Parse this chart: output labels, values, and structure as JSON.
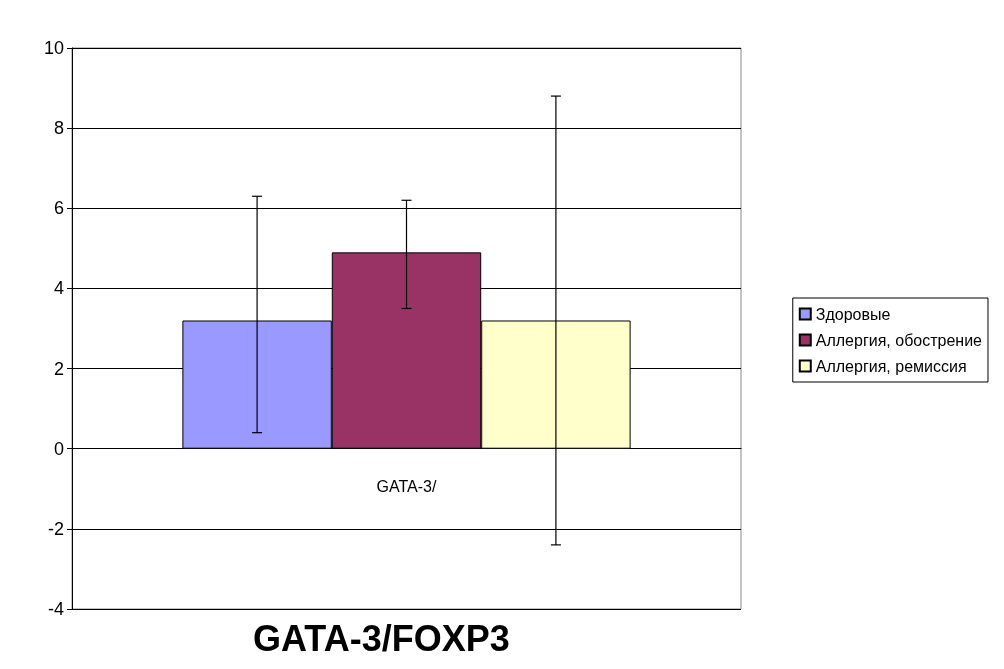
{
  "chart_data": {
    "type": "bar",
    "title": "GATA-3/FOXP3",
    "categories": [
      "GATA-3/"
    ],
    "series": [
      {
        "name": "Здоровые",
        "color": "#9999ff",
        "values": [
          3.2
        ],
        "errors": [
          [
            0.4,
            6.3
          ]
        ]
      },
      {
        "name": "Аллергия, обострение",
        "color": "#993366",
        "values": [
          4.9
        ],
        "errors": [
          [
            3.5,
            6.2
          ]
        ]
      },
      {
        "name": "Аллергия, ремиссия",
        "color": "#ffffcc",
        "values": [
          3.2
        ],
        "errors": [
          [
            -2.4,
            8.8
          ]
        ]
      }
    ],
    "ylim": [
      -4,
      10
    ],
    "yticks": [
      -4,
      -2,
      0,
      2,
      4,
      6,
      8,
      10
    ],
    "grid": "y",
    "legend": "right"
  }
}
